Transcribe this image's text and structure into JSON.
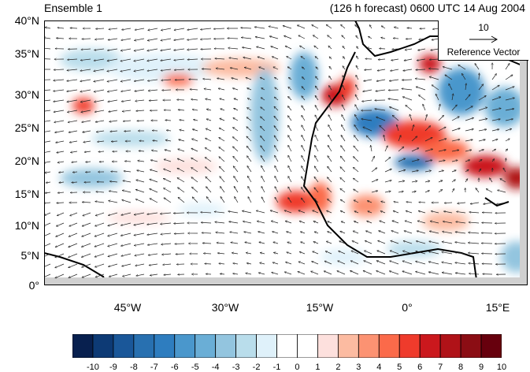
{
  "header": {
    "title_left": "Ensemble 1",
    "title_right": "(126 h forecast) 0600 UTC 14 Aug 2004"
  },
  "map": {
    "projection": "cylindrical equidistant",
    "lon_range": [
      "55°W",
      "20°E"
    ],
    "lat_range": [
      "0°",
      "40°N"
    ],
    "lat_labels": [
      "40°N",
      "35°N",
      "30°N",
      "25°N",
      "20°N",
      "15°N",
      "10°N",
      "5°N",
      "0°"
    ],
    "lon_labels": [
      "45°W",
      "30°W",
      "15°W",
      "0°",
      "15°E"
    ],
    "field": "wind vectors over shaded anomaly field",
    "reference_vector": {
      "magnitude": "10",
      "label": "Reference Vector"
    }
  },
  "colorbar": {
    "labels": [
      "-10",
      "-9",
      "-8",
      "-7",
      "-6",
      "-5",
      "-4",
      "-3",
      "-2",
      "-1",
      "0",
      "1",
      "2",
      "3",
      "4",
      "5",
      "6",
      "7",
      "8",
      "9",
      "10"
    ],
    "colors": [
      "#08204f",
      "#0d3a75",
      "#1a5799",
      "#2870b0",
      "#2e7dbf",
      "#4a97cc",
      "#6aaed6",
      "#93c5df",
      "#b9ddeb",
      "#dff1fa",
      "#ffffff",
      "#ffffff",
      "#fde0dd",
      "#fcbba1",
      "#fc9272",
      "#fb6a4a",
      "#ef3b2c",
      "#cb181d",
      "#b01218",
      "#8b0d14",
      "#67000d"
    ]
  }
}
